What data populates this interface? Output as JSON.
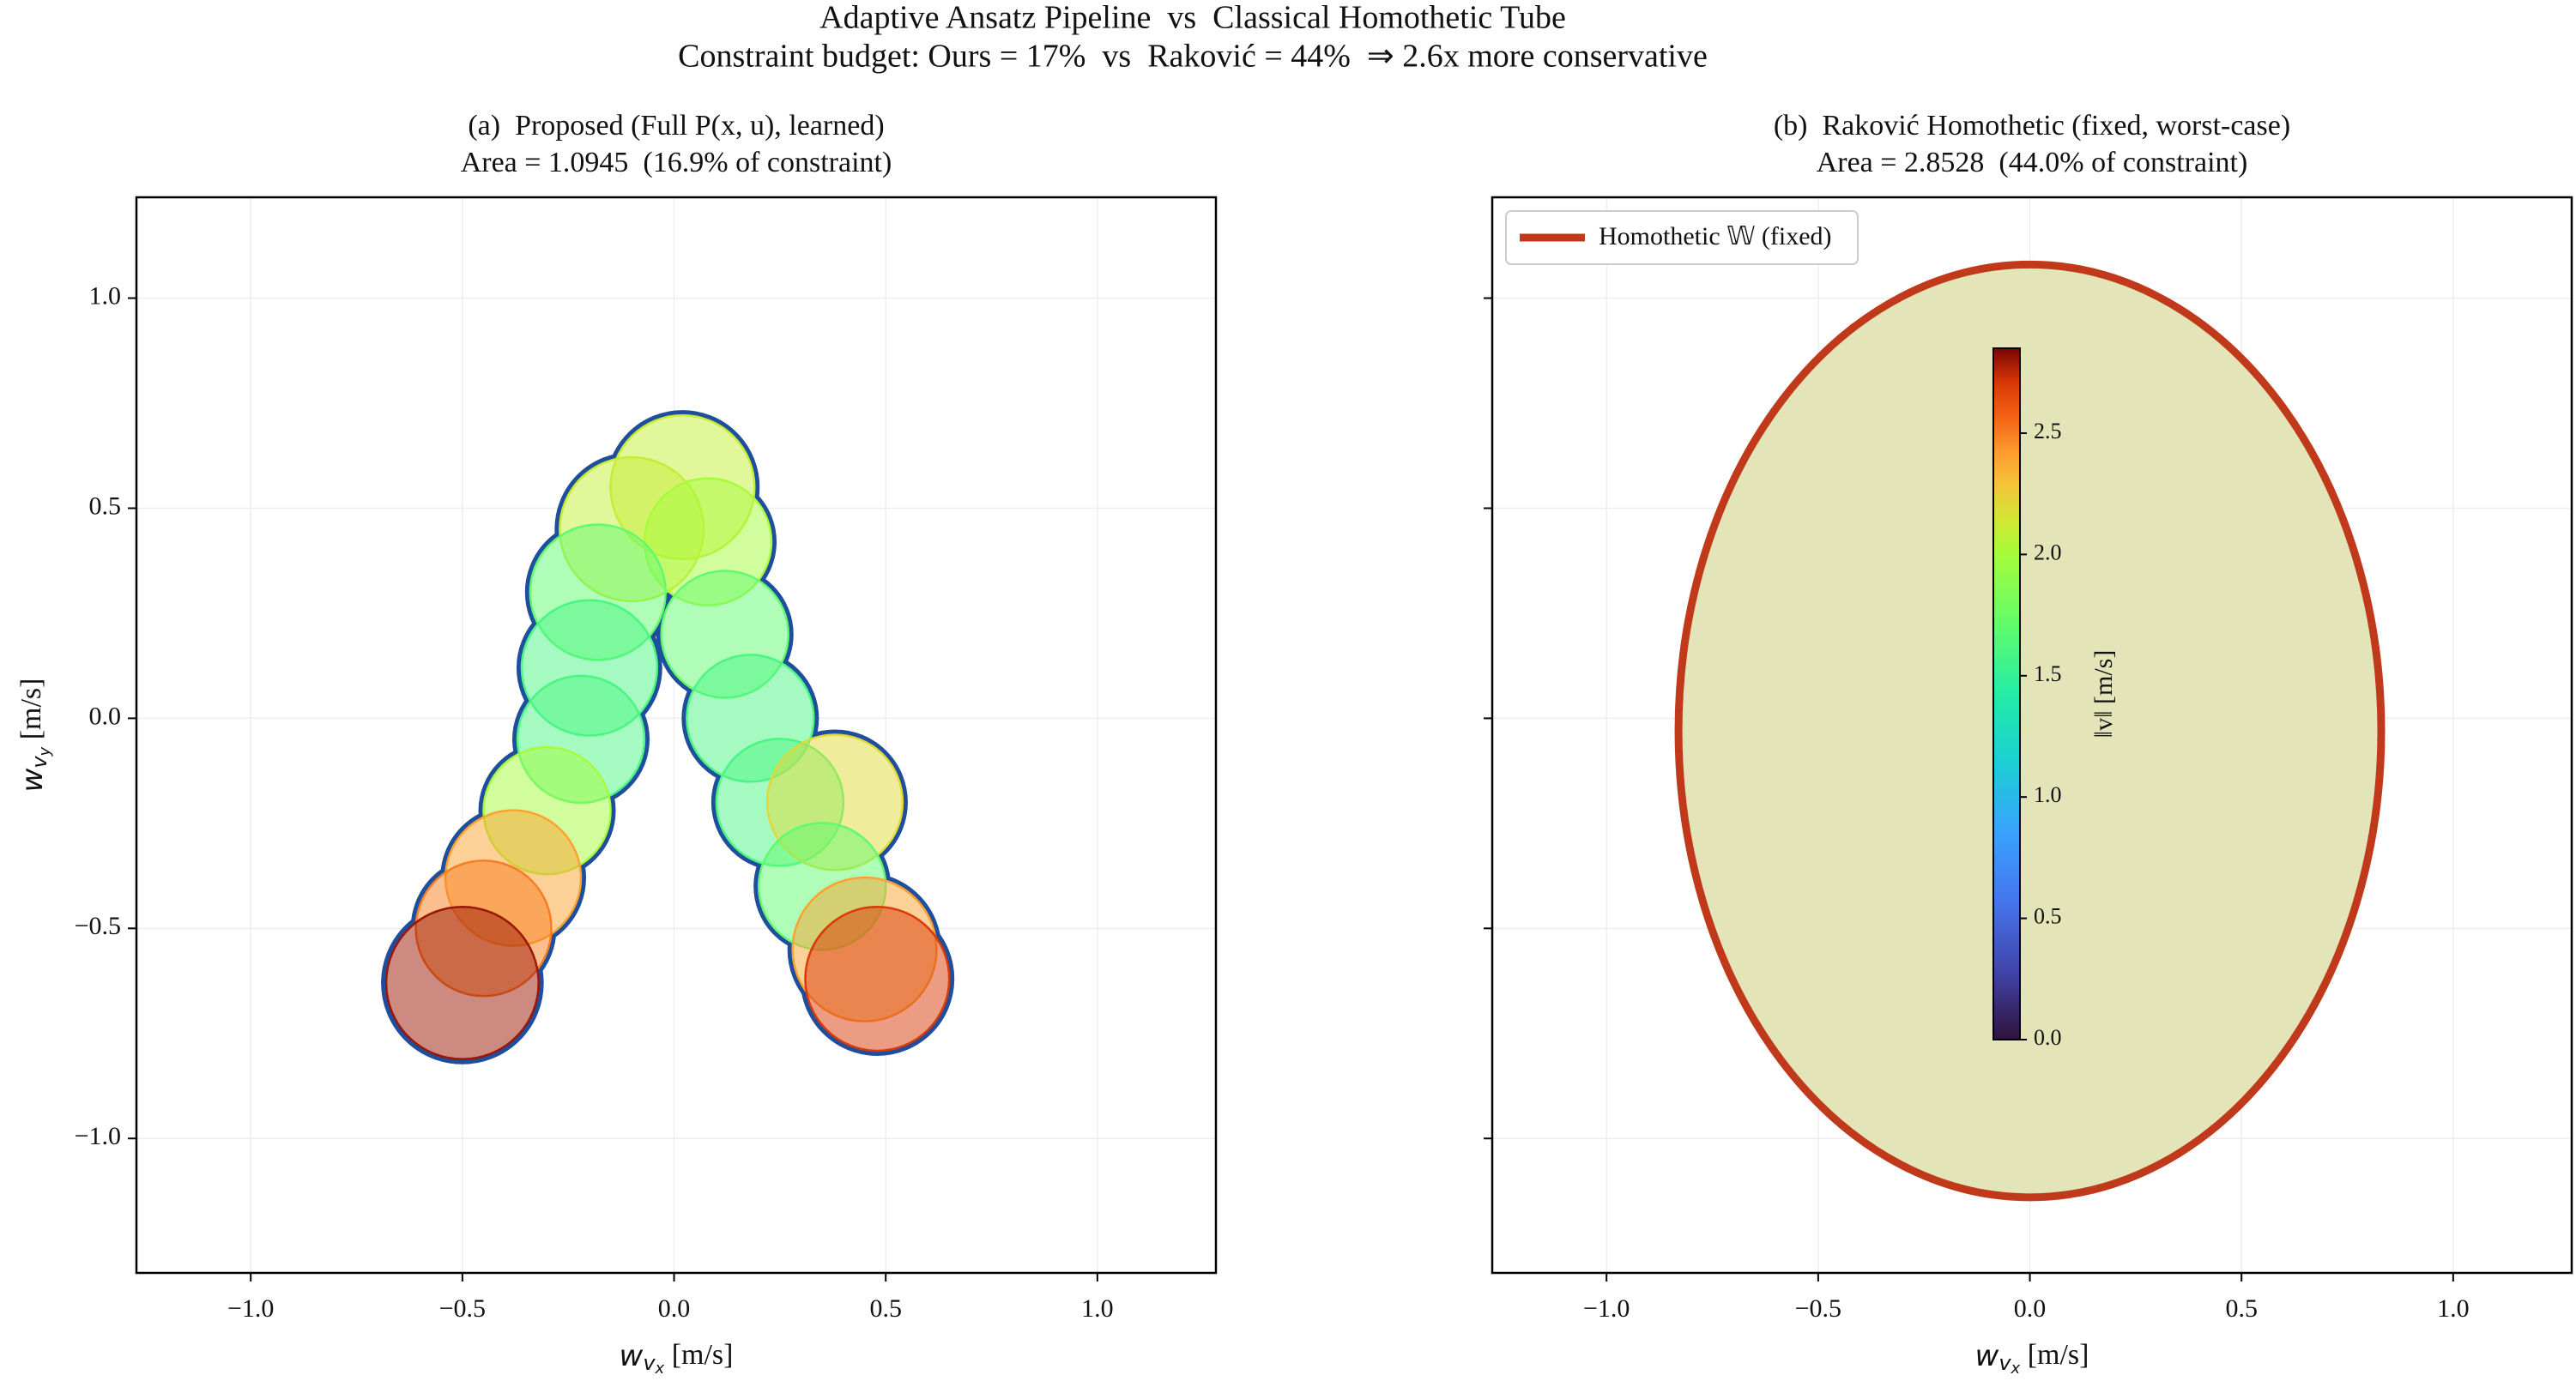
{
  "figure": {
    "title": "Adaptive Ansatz Pipeline  vs  Classical Homothetic Tube",
    "subtitle": "Constraint budget: Ours = 17%  vs  Raković = 44%  ⇒ 2.6x more conservative"
  },
  "chart_data": [
    {
      "type": "circles",
      "title": "(a)  Proposed (Full P(x, u), learned)",
      "subtitle": "Area = 1.0945  (16.9% of constraint)",
      "xlabel": {
        "symbol": "w",
        "sub": "v",
        "subsub": "x",
        "unit": " [m/s]"
      },
      "ylabel": {
        "symbol": "w",
        "sub": "v",
        "subsub": "y",
        "unit": " [m/s]"
      },
      "xlim": [
        -1.27,
        1.28
      ],
      "ylim": [
        -1.32,
        1.24
      ],
      "xticks": [
        {
          "value": -1,
          "label": "−1.0"
        },
        {
          "value": -0.5,
          "label": "−0.5"
        },
        {
          "value": 0,
          "label": "0.0"
        },
        {
          "value": 0.5,
          "label": "0.5"
        },
        {
          "value": 1,
          "label": "1.0"
        }
      ],
      "yticks": [
        {
          "value": -1,
          "label": "−1.0"
        },
        {
          "value": -0.5,
          "label": "−0.5"
        },
        {
          "value": 0,
          "label": "0.0"
        },
        {
          "value": 0.5,
          "label": "0.5"
        },
        {
          "value": 1,
          "label": "1.0"
        }
      ],
      "grid": true,
      "colormap": "turbo",
      "clim": [
        0,
        2.85
      ],
      "outline_color": "#1f4e9c",
      "points": {
        "x": [
          0.02,
          -0.1,
          0.08,
          -0.18,
          -0.2,
          0.12,
          0.18,
          -0.22,
          0.25,
          -0.3,
          0.38,
          -0.38,
          0.35,
          -0.45,
          0.45,
          -0.5,
          0.48
        ],
        "y": [
          0.55,
          0.45,
          0.42,
          0.3,
          0.12,
          0.2,
          0.0,
          -0.05,
          -0.2,
          -0.22,
          -0.2,
          -0.38,
          -0.4,
          -0.5,
          -0.55,
          -0.63,
          -0.62
        ],
        "r": [
          0.17,
          0.17,
          0.15,
          0.16,
          0.16,
          0.15,
          0.15,
          0.15,
          0.15,
          0.15,
          0.16,
          0.16,
          0.15,
          0.16,
          0.17,
          0.18,
          0.17
        ],
        "speed": [
          2.1,
          2.1,
          2.0,
          1.7,
          1.6,
          1.7,
          1.6,
          1.6,
          1.6,
          2.0,
          2.2,
          2.4,
          1.7,
          2.5,
          2.4,
          2.8,
          2.7
        ]
      }
    },
    {
      "type": "ellipse",
      "title": "(b)  Raković Homothetic (fixed, worst-case)",
      "subtitle": "Area = 2.8528  (44.0% of constraint)",
      "xlabel": {
        "symbol": "w",
        "sub": "v",
        "subsub": "x",
        "unit": " [m/s]"
      },
      "xlim": [
        -1.27,
        1.28
      ],
      "ylim": [
        -1.32,
        1.24
      ],
      "xticks": [
        {
          "value": -1,
          "label": "−1.0"
        },
        {
          "value": -0.5,
          "label": "−0.5"
        },
        {
          "value": 0,
          "label": "0.0"
        },
        {
          "value": 0.5,
          "label": "0.5"
        },
        {
          "value": 1,
          "label": "1.0"
        }
      ],
      "yticks": [
        -1,
        -0.5,
        0,
        0.5,
        1
      ],
      "grid": true,
      "legend": "upper left",
      "set": {
        "name": "Homothetic 𝕎 (fixed)",
        "color": "#c0391b",
        "fill": "#e3e5b8",
        "cx": 0,
        "cy": -0.03,
        "rx": 0.83,
        "ry": 1.11
      },
      "colorbar": {
        "label": "‖v‖ [m/s]",
        "colormap": "turbo",
        "clim": [
          0,
          2.85
        ],
        "ticks": [
          {
            "value": 0,
            "label": "0.0"
          },
          {
            "value": 0.5,
            "label": "0.5"
          },
          {
            "value": 1,
            "label": "1.0"
          },
          {
            "value": 1.5,
            "label": "1.5"
          },
          {
            "value": 2,
            "label": "2.0"
          },
          {
            "value": 2.5,
            "label": "2.5"
          }
        ]
      }
    }
  ]
}
